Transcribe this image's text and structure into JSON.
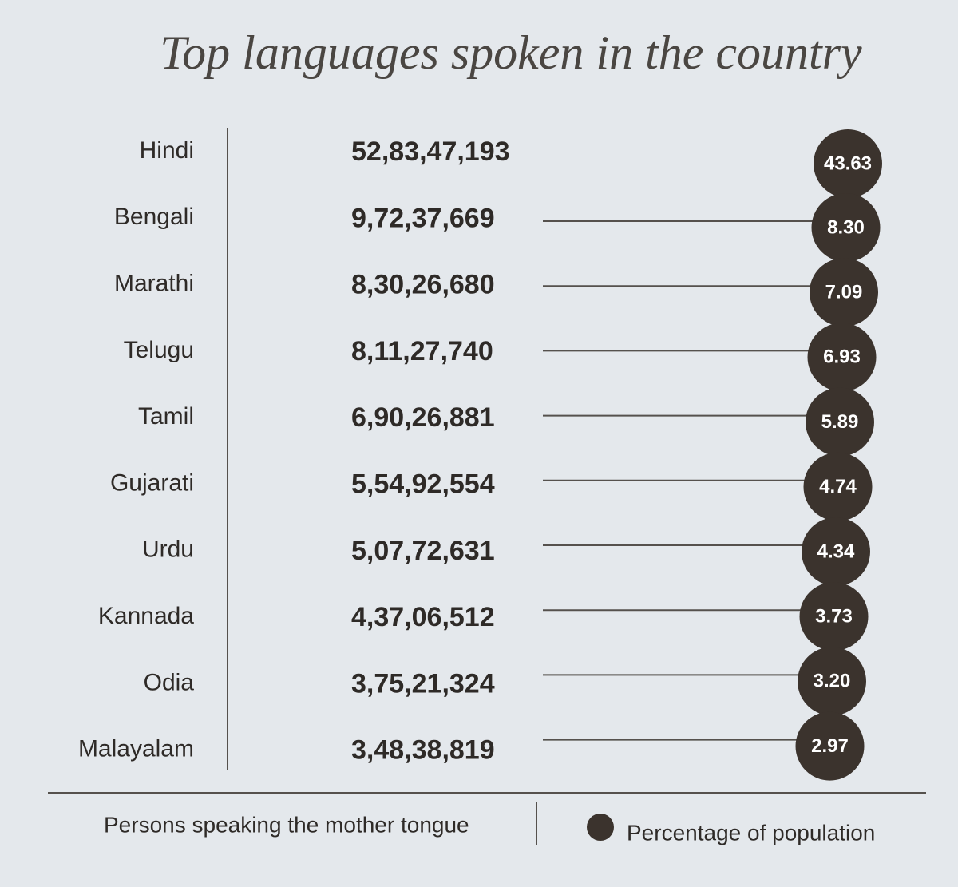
{
  "chart_data": {
    "type": "dot-table",
    "title": "Top languages spoken in the country",
    "categories": [
      "Hindi",
      "Bengali",
      "Marathi",
      "Telugu",
      "Tamil",
      "Gujarati",
      "Urdu",
      "Kannada",
      "Odia",
      "Malayalam"
    ],
    "series": [
      {
        "name": "Persons speaking the mother tongue",
        "values": [
          528347193,
          97237669,
          83026680,
          81127740,
          69026881,
          55492554,
          50772631,
          43706512,
          37521324,
          34838819
        ],
        "value_labels": [
          "52,83,47,193",
          "9,72,37,669",
          "8,30,26,680",
          "8,11,27,740",
          "6,90,26,881",
          "5,54,92,554",
          "5,07,72,631",
          "4,37,06,512",
          "3,75,21,324",
          "3,48,38,819"
        ]
      },
      {
        "name": "Percentage of population",
        "color": "#3b332d",
        "values": [
          43.63,
          8.3,
          7.09,
          6.93,
          5.89,
          4.74,
          4.34,
          3.73,
          3.2,
          2.97
        ],
        "value_labels": [
          "43.63",
          "8.30",
          "7.09",
          "6.93",
          "5.89",
          "4.74",
          "4.34",
          "3.73",
          "3.20",
          "2.97"
        ]
      }
    ]
  }
}
